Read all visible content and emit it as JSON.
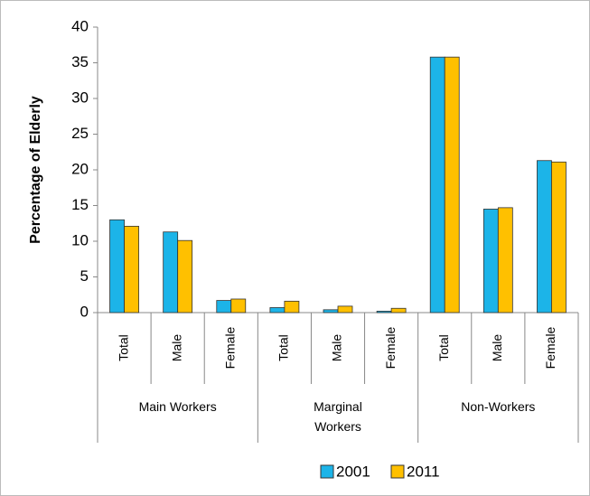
{
  "chart_data": {
    "type": "bar",
    "y_label": "Percentage of Elderly",
    "groups": [
      {
        "label": "Main Workers",
        "categories": [
          "Total",
          "Male",
          "Female"
        ]
      },
      {
        "label": "Marginal Workers",
        "categories": [
          "Total",
          "Male",
          "Female"
        ]
      },
      {
        "label": "Non-Workers",
        "categories": [
          "Total",
          "Male",
          "Female"
        ]
      }
    ],
    "series": [
      {
        "name": "2001",
        "color": "#1cb4e8",
        "values": [
          13.0,
          11.3,
          1.7,
          0.7,
          0.4,
          0.2,
          35.8,
          14.5,
          21.3
        ]
      },
      {
        "name": "2011",
        "color": "#ffc000",
        "values": [
          12.1,
          10.1,
          1.9,
          1.6,
          0.9,
          0.6,
          35.8,
          14.7,
          21.1
        ]
      }
    ],
    "ylim": [
      0,
      40
    ],
    "yticks": [
      0,
      5,
      10,
      15,
      20,
      25,
      30,
      35,
      40
    ],
    "legend": "bottom"
  }
}
